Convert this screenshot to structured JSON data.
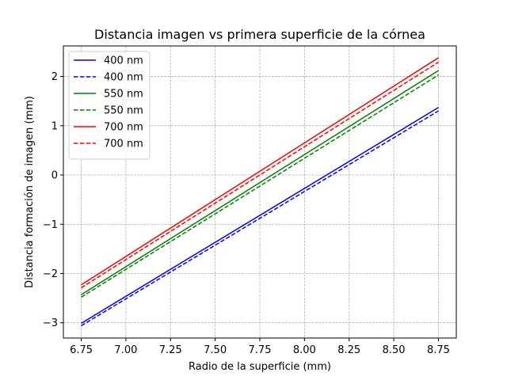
{
  "chart_data": {
    "type": "line",
    "title": "Distancia imagen vs primera superficie de la córnea",
    "xlabel": "Radio de la superficie (mm)",
    "ylabel": "Distancia formación de imagen (mm)",
    "xlim": [
      6.65,
      8.85
    ],
    "ylim": [
      -3.31,
      2.62
    ],
    "xticks": [
      6.75,
      7.0,
      7.25,
      7.5,
      7.75,
      8.0,
      8.25,
      8.5,
      8.75
    ],
    "xtick_labels": [
      "6.75",
      "7.00",
      "7.25",
      "7.50",
      "7.75",
      "8.00",
      "8.25",
      "8.50",
      "8.75"
    ],
    "yticks": [
      -3,
      -2,
      -1,
      0,
      1,
      2
    ],
    "ytick_labels": [
      "−3",
      "−2",
      "−1",
      "0",
      "1",
      "2"
    ],
    "grid": true,
    "legend_position": "top-left",
    "series": [
      {
        "name": "400 nm",
        "color": "#0000ff",
        "style": "solid",
        "x": [
          6.75,
          8.75
        ],
        "y": [
          -3.01,
          1.37
        ]
      },
      {
        "name": "400 nm",
        "color": "#0000ff",
        "style": "dashed",
        "x": [
          6.75,
          8.75
        ],
        "y": [
          -3.06,
          1.3
        ]
      },
      {
        "name": "550 nm",
        "color": "#008000",
        "style": "solid",
        "x": [
          6.75,
          8.75
        ],
        "y": [
          -2.43,
          2.12
        ]
      },
      {
        "name": "550 nm",
        "color": "#008000",
        "style": "dashed",
        "x": [
          6.75,
          8.75
        ],
        "y": [
          -2.48,
          2.03
        ]
      },
      {
        "name": "700 nm",
        "color": "#ff0000",
        "style": "solid",
        "x": [
          6.75,
          8.75
        ],
        "y": [
          -2.23,
          2.38
        ]
      },
      {
        "name": "700 nm",
        "color": "#ff0000",
        "style": "dashed",
        "x": [
          6.75,
          8.75
        ],
        "y": [
          -2.29,
          2.29
        ]
      }
    ]
  }
}
